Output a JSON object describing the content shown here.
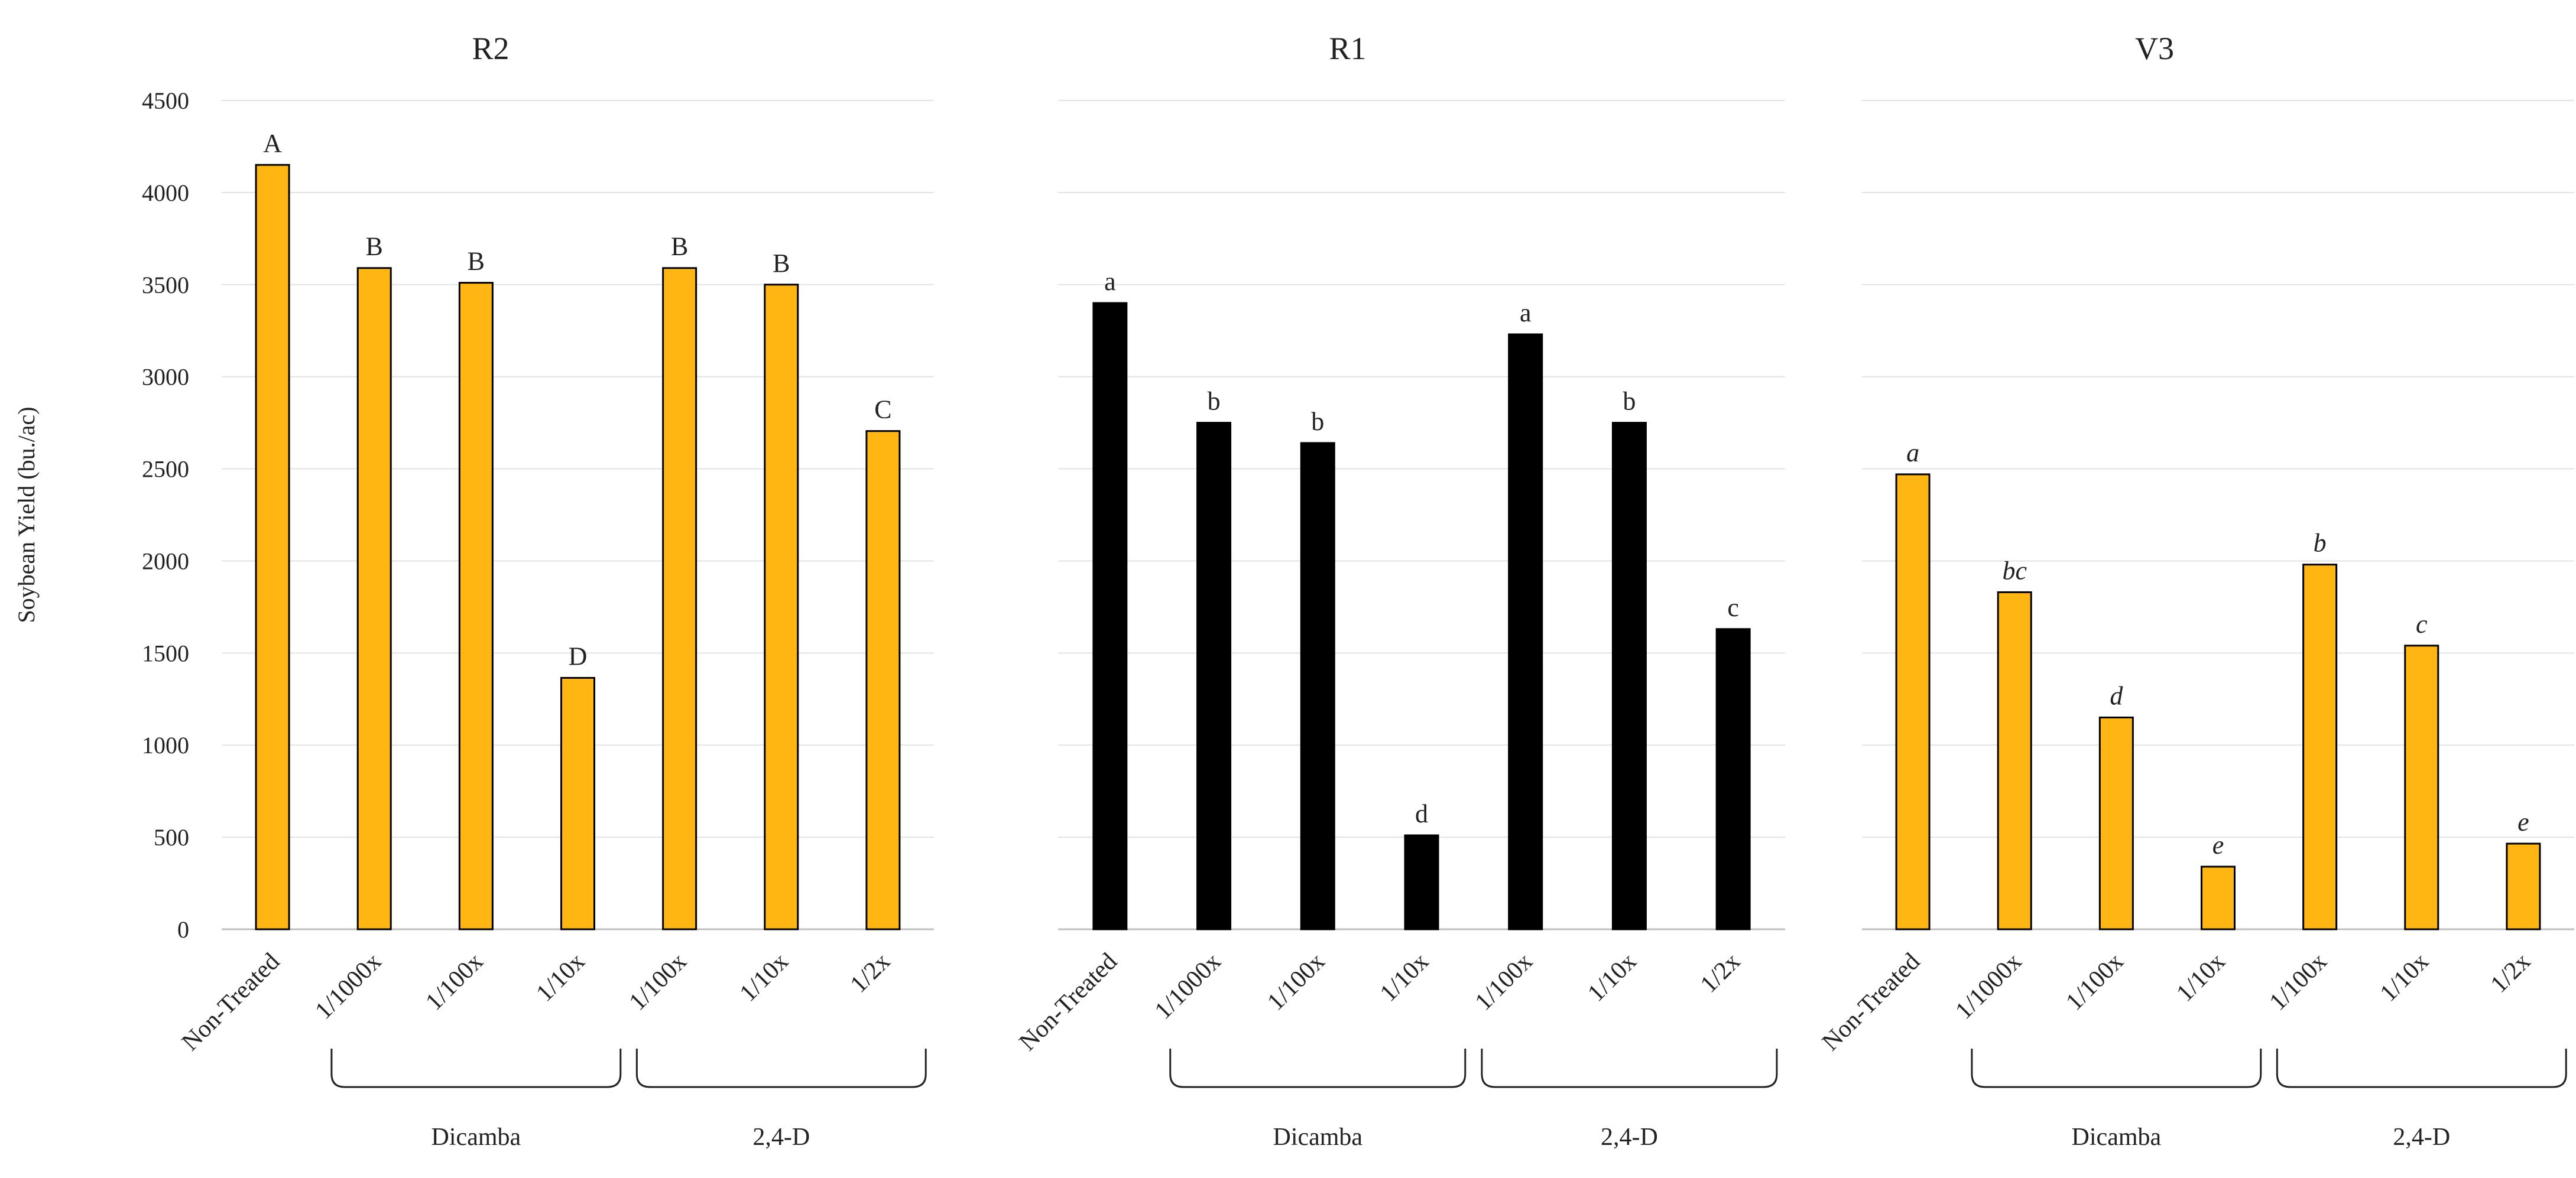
{
  "page": {
    "ylabel": "Soybean Yield (bu./ac)",
    "y_ticks": [
      "0",
      "500",
      "1000",
      "1500",
      "2000",
      "2500",
      "3000",
      "3500",
      "4000",
      "4500"
    ]
  },
  "chart_data": [
    {
      "type": "bar",
      "title": "R2",
      "categories": [
        "Non-Treated",
        "1/1000x",
        "1/100x",
        "1/10x",
        "1/100x",
        "1/10x",
        "1/2x"
      ],
      "values": [
        4150,
        3590,
        3510,
        1365,
        3590,
        3500,
        2705
      ],
      "letters": [
        "A",
        "B",
        "B",
        "D",
        "B",
        "B",
        "C"
      ],
      "letters_italic": false,
      "ylabel": "Soybean Yield (bu./ac)",
      "ylim": [
        0,
        4500
      ],
      "grid": true,
      "show_y_ticks": true,
      "groups": [
        {
          "label": "Dicamba",
          "from": 1,
          "to": 3
        },
        {
          "label": "2,4-D",
          "from": 4,
          "to": 6
        }
      ],
      "bar_color": "#FFB512"
    },
    {
      "type": "bar",
      "title": "R1",
      "categories": [
        "Non-Treated",
        "1/1000x",
        "1/100x",
        "1/10x",
        "1/100x",
        "1/10x",
        "1/2x"
      ],
      "values": [
        3400,
        2750,
        2640,
        510,
        3230,
        2750,
        1630
      ],
      "letters": [
        "a",
        "b",
        "b",
        "d",
        "a",
        "b",
        "c"
      ],
      "letters_italic": false,
      "ylabel": "",
      "ylim": [
        0,
        4500
      ],
      "grid": true,
      "show_y_ticks": false,
      "groups": [
        {
          "label": "Dicamba",
          "from": 1,
          "to": 3
        },
        {
          "label": "2,4-D",
          "from": 4,
          "to": 6
        }
      ],
      "bar_color": "#000000"
    },
    {
      "type": "bar",
      "title": "V3",
      "categories": [
        "Non-Treated",
        "1/1000x",
        "1/100x",
        "1/10x",
        "1/100x",
        "1/10x",
        "1/2x"
      ],
      "values": [
        2470,
        1830,
        1150,
        340,
        1980,
        1540,
        465
      ],
      "letters": [
        "a",
        "bc",
        "d",
        "e",
        "b",
        "c",
        "e"
      ],
      "letters_italic": true,
      "ylabel": "",
      "ylim": [
        0,
        4500
      ],
      "grid": true,
      "show_y_ticks": false,
      "groups": [
        {
          "label": "Dicamba",
          "from": 1,
          "to": 3
        },
        {
          "label": "2,4-D",
          "from": 4,
          "to": 6
        }
      ],
      "bar_color": "#FFB512"
    }
  ]
}
